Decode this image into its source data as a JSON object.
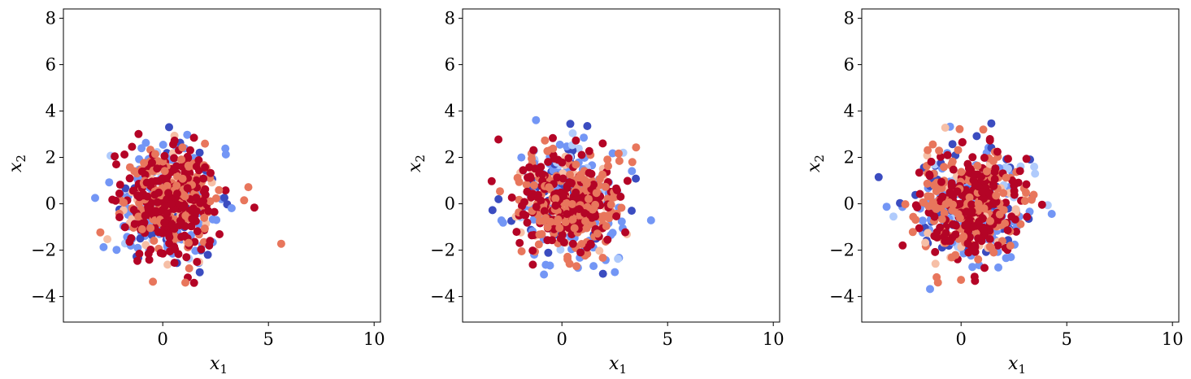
{
  "chart_data": [
    {
      "type": "scatter",
      "panel": 1,
      "xlabel": "x",
      "xlabel_sub": "1",
      "ylabel": "x",
      "ylabel_sub": "2",
      "xlim": [
        -4.7,
        10.3
      ],
      "ylim": [
        -5.1,
        8.4
      ],
      "xticks": [
        0,
        5,
        10
      ],
      "yticks": [
        -4,
        -2,
        0,
        2,
        4,
        6,
        8
      ],
      "grid": false,
      "legend": "none",
      "colormap": [
        "#3b4cc0",
        "#7396f5",
        "#b0cbfc",
        "#f6bfa6",
        "#e8765c",
        "#b40426"
      ],
      "points": {
        "seed": 11,
        "count": 650,
        "center": [
          0.3,
          0.1
        ],
        "spread": [
          1.15,
          1.15
        ],
        "outliers": [
          [
            3.85,
            0.15,
            0.75
          ],
          [
            -3.2,
            0.25,
            0.25
          ],
          [
            -2.2,
            1.7,
            1.0
          ],
          [
            0.3,
            3.3,
            0.0
          ],
          [
            1.75,
            -2.95,
            0.0
          ]
        ]
      }
    },
    {
      "type": "scatter",
      "panel": 2,
      "xlabel": "x",
      "xlabel_sub": "1",
      "ylabel": "x",
      "ylabel_sub": "2",
      "xlim": [
        -4.7,
        10.3
      ],
      "ylim": [
        -5.1,
        8.4
      ],
      "xticks": [
        0,
        5,
        10
      ],
      "yticks": [
        -4,
        -2,
        0,
        2,
        4,
        6,
        8
      ],
      "grid": false,
      "legend": "none",
      "colormap": [
        "#3b4cc0",
        "#7396f5",
        "#b0cbfc",
        "#f6bfa6",
        "#e8765c",
        "#b40426"
      ],
      "points": {
        "seed": 29,
        "count": 650,
        "center": [
          0.35,
          0.05
        ],
        "spread": [
          1.2,
          1.2
        ],
        "outliers": [
          [
            -3.0,
            0.2,
            0.0
          ],
          [
            1.2,
            3.35,
            0.0
          ],
          [
            3.3,
            -0.3,
            0.05
          ],
          [
            -0.85,
            -3.05,
            0.1
          ],
          [
            2.9,
            2.2,
            0.3
          ]
        ]
      }
    },
    {
      "type": "scatter",
      "panel": 3,
      "xlabel": "x",
      "xlabel_sub": "1",
      "ylabel": "x",
      "ylabel_sub": "2",
      "xlim": [
        -4.7,
        10.3
      ],
      "ylim": [
        -5.1,
        8.4
      ],
      "xticks": [
        0,
        5,
        10
      ],
      "yticks": [
        -4,
        -2,
        0,
        2,
        4,
        6,
        8
      ],
      "grid": false,
      "legend": "none",
      "colormap": [
        "#3b4cc0",
        "#7396f5",
        "#b0cbfc",
        "#f6bfa6",
        "#e8765c",
        "#b40426"
      ],
      "points": {
        "seed": 47,
        "count": 650,
        "center": [
          0.45,
          -0.05
        ],
        "spread": [
          1.2,
          1.15
        ],
        "outliers": [
          [
            -3.9,
            1.15,
            0.0
          ],
          [
            -3.2,
            -0.55,
            0.35
          ],
          [
            1.05,
            3.2,
            0.8
          ],
          [
            0.85,
            -2.65,
            0.25
          ],
          [
            3.2,
            -0.65,
            0.05
          ]
        ]
      }
    }
  ]
}
